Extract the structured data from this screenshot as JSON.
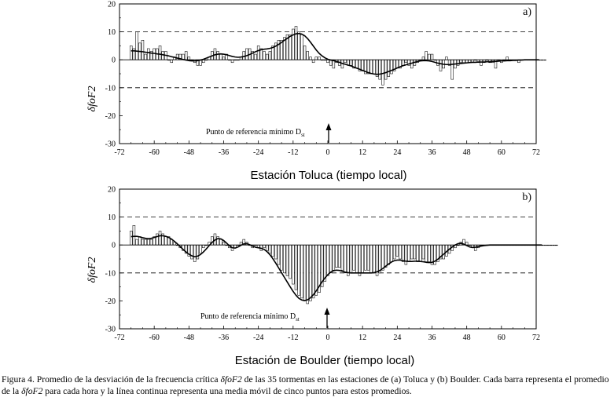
{
  "figure": {
    "caption": {
      "p1": "Figura 4. Promedio de la desviación de la frecuencia crítica ",
      "i1": "δfoF2",
      "p2": " de las 35 tormentas en las estaciones de (a) Toluca y (b) Boulder. Cada barra representa el promedio de la ",
      "i2": "δfoF2",
      "p3": " para cada hora y la línea continua representa una media móvil de cinco puntos para estos promedios."
    }
  },
  "chart_data": [
    {
      "type": "bar",
      "panel_label": "a)",
      "title": "",
      "xlabel": "Estación Toluca (tiempo local)",
      "ylabel": "δfoF2",
      "xlim": [
        -72,
        72
      ],
      "ylim": [
        -30,
        20
      ],
      "xticks": [
        -72,
        -60,
        -48,
        -36,
        -24,
        -12,
        0,
        12,
        24,
        36,
        48,
        60,
        72
      ],
      "yticks": [
        20,
        10,
        0,
        -10,
        -20,
        -30
      ],
      "reference_lines": [
        10,
        -10
      ],
      "annotation": {
        "text": "Punto de referencia mínimo D",
        "subscript": "st",
        "x": 0
      },
      "x_start": -68,
      "values": [
        5,
        4,
        10,
        6,
        7,
        2,
        4,
        3,
        4,
        4,
        5,
        3,
        3,
        0,
        -1,
        1,
        2,
        2,
        2,
        3,
        1,
        0,
        -1,
        -2,
        -2,
        -1,
        0,
        1,
        3,
        4,
        3,
        2,
        1,
        2,
        0,
        -1,
        0,
        0,
        1,
        3,
        4,
        4,
        3,
        2,
        5,
        4,
        3,
        2,
        3,
        5,
        6,
        7,
        7,
        8,
        9,
        9,
        11,
        12,
        10,
        9,
        5,
        3,
        1,
        -1,
        1,
        1,
        0,
        0,
        -1,
        -2,
        -3,
        -1,
        -2,
        -3,
        -1,
        -2,
        -2,
        -3,
        -3,
        -4,
        -4,
        -5,
        -5,
        -5,
        -5,
        -6,
        -7,
        -9,
        -7,
        -6,
        -5,
        -4,
        -3,
        -3,
        -2,
        -1,
        -2,
        -3,
        -2,
        -1,
        0,
        1,
        3,
        2,
        2,
        0,
        -2,
        -4,
        -3,
        1,
        -2,
        -7,
        -3,
        -2,
        -1,
        -1,
        -1,
        -1,
        -1,
        0,
        -1,
        -2,
        -1,
        0,
        -1,
        -1,
        -3,
        0,
        -1,
        0,
        1,
        0,
        0,
        0,
        -1,
        0,
        0,
        0,
        0,
        0,
        0,
        0,
        0,
        0
      ],
      "smooth": [
        3.2,
        3.2,
        3.1,
        3.0,
        2.9,
        2.7,
        2.6,
        2.4,
        2.3,
        2.1,
        2.0,
        1.8,
        1.6,
        1.4,
        1.1,
        0.9,
        0.6,
        0.4,
        0.1,
        -0.1,
        -0.3,
        -0.4,
        -0.4,
        -0.3,
        -0.1,
        0.2,
        0.6,
        1.0,
        1.4,
        1.8,
        2.0,
        2.1,
        2.0,
        1.8,
        1.5,
        1.2,
        1.0,
        0.9,
        1.0,
        1.2,
        1.5,
        1.9,
        2.4,
        2.9,
        3.3,
        3.6,
        3.8,
        3.9,
        4.1,
        4.4,
        4.9,
        5.5,
        6.2,
        7.0,
        7.7,
        8.4,
        8.9,
        9.3,
        9.4,
        9.2,
        8.6,
        7.6,
        6.3,
        4.9,
        3.5,
        2.3,
        1.4,
        0.7,
        0.2,
        -0.1,
        -0.3,
        -0.6,
        -0.9,
        -1.3,
        -1.6,
        -1.9,
        -2.2,
        -2.6,
        -3.0,
        -3.4,
        -3.8,
        -4.2,
        -4.6,
        -4.9,
        -5.1,
        -5.2,
        -5.1,
        -4.9,
        -4.6,
        -4.2,
        -3.8,
        -3.4,
        -2.9,
        -2.5,
        -2.1,
        -1.8,
        -1.5,
        -1.2,
        -0.9,
        -0.6,
        -0.4,
        -0.3,
        -0.3,
        -0.4,
        -0.6,
        -0.9,
        -1.2,
        -1.4,
        -1.6,
        -1.7,
        -1.7,
        -1.6,
        -1.5,
        -1.4,
        -1.3,
        -1.2,
        -1.1,
        -1.0,
        -0.9,
        -0.9,
        -0.8,
        -0.8,
        -0.8,
        -0.7,
        -0.7,
        -0.6,
        -0.6,
        -0.5,
        -0.4,
        -0.4,
        -0.3,
        -0.3,
        -0.2,
        -0.2,
        -0.1,
        -0.1,
        0.0,
        0.0,
        0.0,
        0.0,
        0.0,
        0.0
      ]
    },
    {
      "type": "bar",
      "panel_label": "b)",
      "title": "",
      "xlabel": "Estación de Boulder (tiempo local)",
      "ylabel": "δfoF2",
      "xlim": [
        -72,
        72
      ],
      "ylim": [
        -30,
        20
      ],
      "xticks": [
        -72,
        -60,
        -48,
        -36,
        -24,
        -12,
        0,
        12,
        24,
        36,
        48,
        60,
        72
      ],
      "yticks": [
        20,
        10,
        0,
        -10,
        -20,
        -30
      ],
      "reference_lines": [
        10,
        -10
      ],
      "annotation": {
        "text": "Punto de referencia mínimo D",
        "subscript": "st",
        "x": 0
      },
      "x_start": -68,
      "values": [
        5,
        7,
        2,
        3,
        2,
        2,
        2,
        2,
        3,
        4,
        5,
        4,
        3,
        3,
        2,
        1,
        0,
        -1,
        -2,
        -3,
        -4,
        -5,
        -6,
        -5,
        -3,
        -1,
        0,
        1,
        3,
        4,
        3,
        2,
        1,
        0,
        -1,
        -2,
        -1,
        0,
        1,
        2,
        1,
        0,
        -1,
        0,
        -1,
        -2,
        -1,
        -2,
        -3,
        -4,
        -5,
        -7,
        -9,
        -10,
        -11,
        -12,
        -14,
        -16,
        -18,
        -19,
        -20,
        -21,
        -20,
        -19,
        -18,
        -17,
        -15,
        -13,
        -11,
        -10,
        -9,
        -8,
        -8,
        -9,
        -10,
        -11,
        -10,
        -9,
        -10,
        -11,
        -10,
        -9,
        -9,
        -10,
        -10,
        -11,
        -10,
        -9,
        -8,
        -7,
        -6,
        -5,
        -4,
        -5,
        -6,
        -7,
        -6,
        -5,
        -5,
        -6,
        -6,
        -5,
        -6,
        -6,
        -7,
        -7,
        -6,
        -5,
        -5,
        -4,
        -3,
        -2,
        -1,
        0,
        1,
        2,
        1,
        0,
        -1,
        -2,
        -1,
        0,
        0,
        0,
        0,
        0,
        0,
        0,
        0,
        0,
        0,
        0,
        0,
        0,
        0,
        0,
        0,
        0,
        0,
        0,
        0,
        0,
        0,
        0,
        0,
        0,
        0,
        0
      ],
      "smooth": [
        3.0,
        3.1,
        3.1,
        2.9,
        2.6,
        2.4,
        2.3,
        2.4,
        2.7,
        3.0,
        3.3,
        3.3,
        3.1,
        2.7,
        2.1,
        1.3,
        0.4,
        -0.6,
        -1.6,
        -2.5,
        -3.3,
        -3.9,
        -4.2,
        -4.0,
        -3.4,
        -2.5,
        -1.4,
        -0.2,
        0.9,
        1.8,
        2.3,
        2.2,
        1.6,
        0.7,
        -0.3,
        -1.0,
        -1.1,
        -0.7,
        -0.1,
        0.4,
        0.5,
        0.1,
        -0.4,
        -0.8,
        -1.0,
        -1.2,
        -1.6,
        -2.4,
        -3.5,
        -4.9,
        -6.5,
        -8.2,
        -9.9,
        -11.6,
        -13.3,
        -15.0,
        -16.6,
        -18.0,
        -19.1,
        -19.7,
        -19.9,
        -19.6,
        -18.9,
        -17.8,
        -16.4,
        -14.8,
        -13.2,
        -11.8,
        -10.6,
        -9.7,
        -9.2,
        -9.0,
        -9.1,
        -9.4,
        -9.7,
        -9.9,
        -10.0,
        -10.0,
        -10.0,
        -10.0,
        -10.0,
        -10.0,
        -10.0,
        -10.0,
        -9.9,
        -9.6,
        -9.1,
        -8.4,
        -7.6,
        -6.8,
        -6.1,
        -5.6,
        -5.4,
        -5.4,
        -5.6,
        -5.8,
        -5.9,
        -5.9,
        -5.8,
        -5.8,
        -5.9,
        -6.0,
        -6.2,
        -6.3,
        -6.2,
        -5.8,
        -5.1,
        -4.2,
        -3.3,
        -2.4,
        -1.5,
        -0.7,
        0.0,
        0.5,
        0.6,
        0.3,
        -0.2,
        -0.7,
        -0.9,
        -0.8,
        -0.6,
        -0.4,
        -0.2,
        -0.1,
        0.0,
        0.0,
        0.0,
        0.0,
        0.0,
        0.0,
        0.0,
        0.0,
        0.0,
        0.0,
        0.0,
        0.0,
        0.0,
        0.0,
        0.0,
        0.0,
        0.0,
        0.0,
        0.0
      ]
    }
  ]
}
